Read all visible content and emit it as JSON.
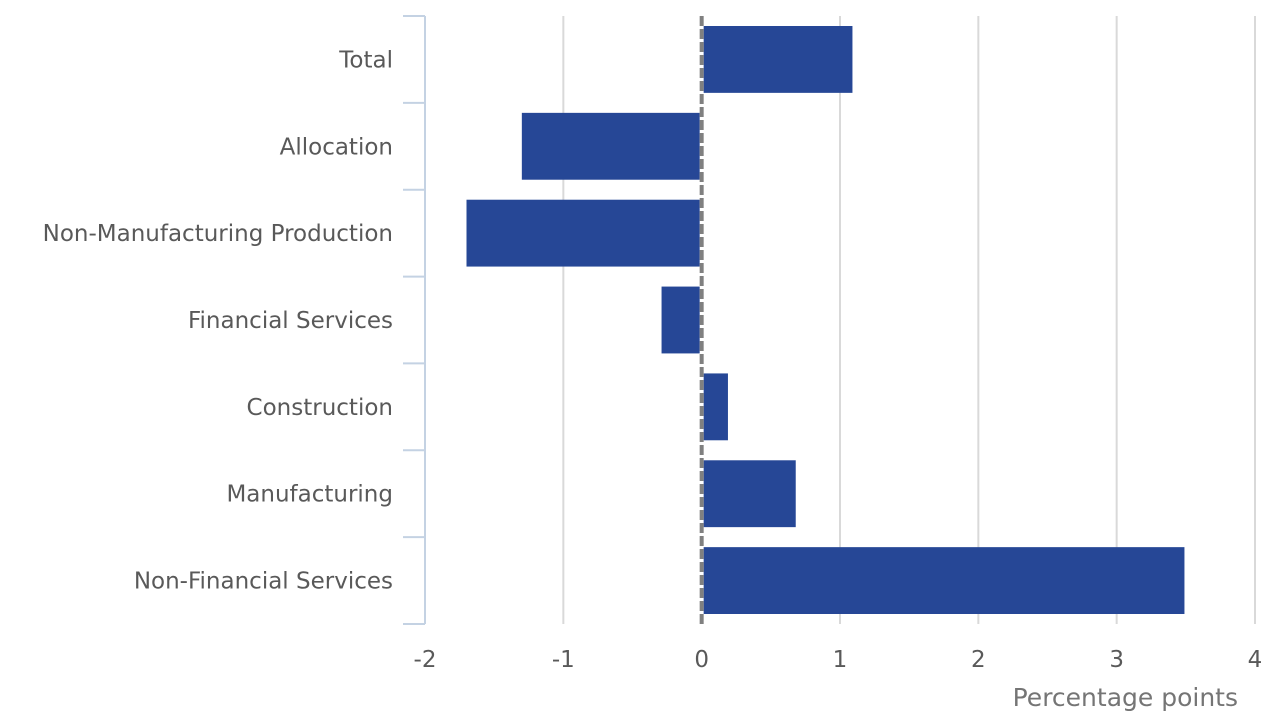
{
  "chart_data": {
    "type": "bar",
    "orientation": "horizontal",
    "categories": [
      "Total",
      "Allocation",
      "Non-Manufacturing Production",
      "Financial Services",
      "Construction",
      "Manufacturing",
      "Non-Financial Services"
    ],
    "values": [
      1.09,
      -1.3,
      -1.7,
      -0.29,
      0.19,
      0.68,
      3.49
    ],
    "title": "",
    "xlabel": "Percentage points",
    "ylabel": "",
    "xlim": [
      -2,
      4
    ],
    "xticks": [
      "-2",
      "-1",
      "0",
      "1",
      "2",
      "3",
      "4"
    ],
    "grid": "vertical",
    "legend": "none",
    "colors": {
      "bar": "#264796",
      "grid": "#d9d9d9",
      "zero_line": "#808080",
      "category_axis": "#c4d2e3"
    }
  }
}
